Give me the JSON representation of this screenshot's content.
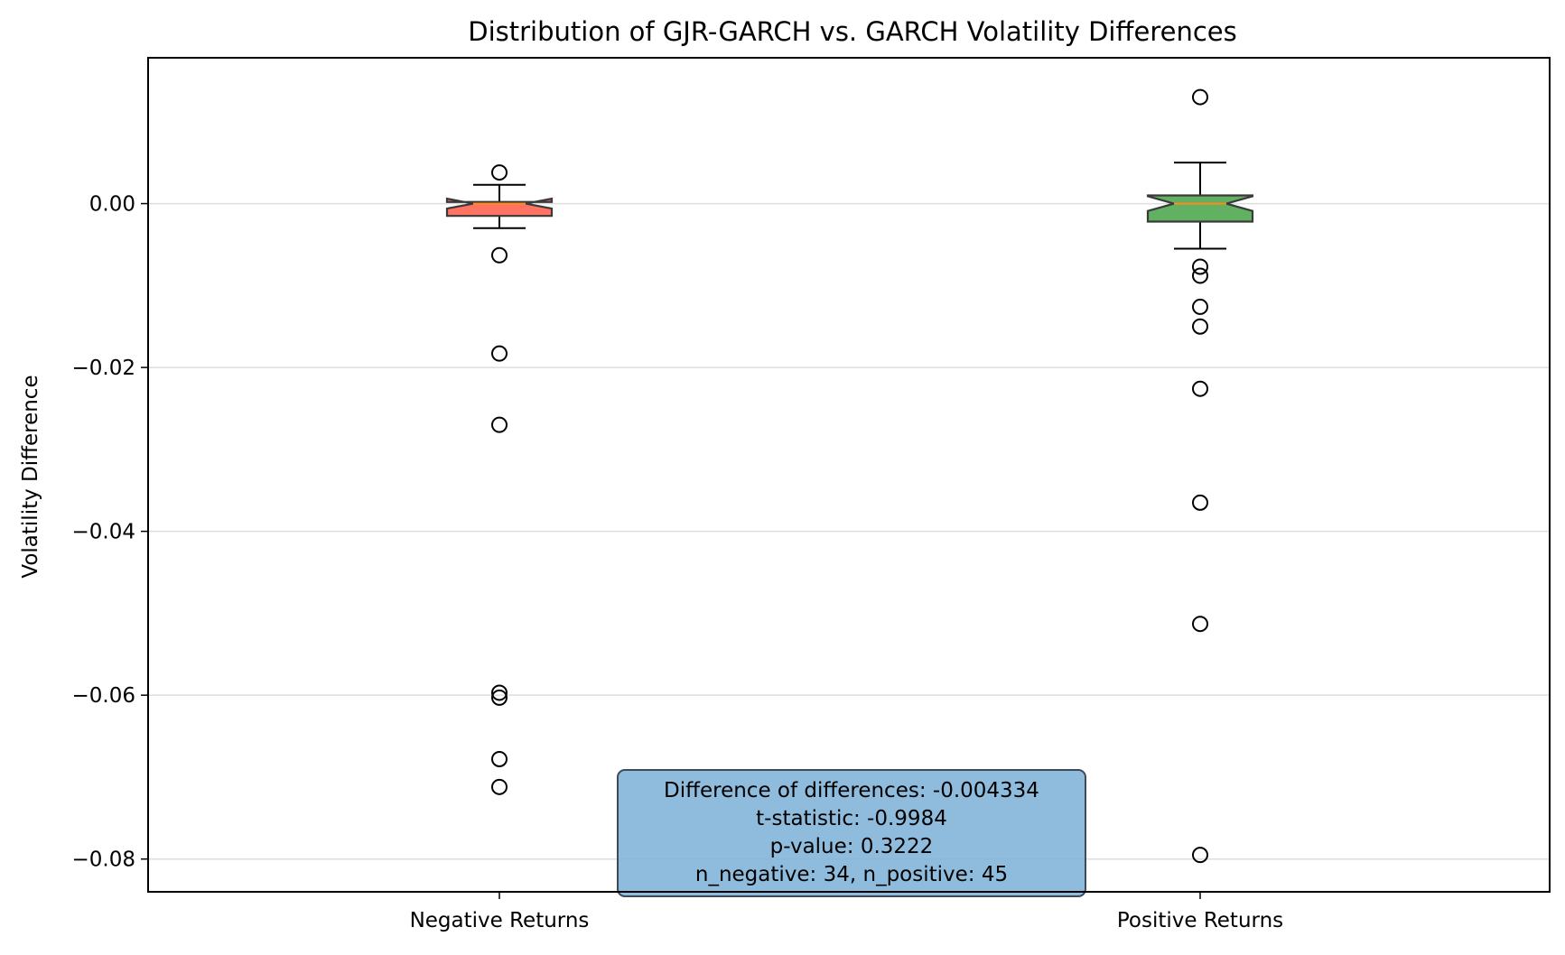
{
  "chart_data": {
    "type": "box",
    "title": "Distribution of GJR-GARCH vs. GARCH Volatility Differences",
    "xlabel": "",
    "ylabel": "Volatility Difference",
    "ylim": [
      -0.084,
      0.0178
    ],
    "yticks": [
      {
        "value": 0.0,
        "label": "0.00"
      },
      {
        "value": -0.02,
        "label": "−0.02"
      },
      {
        "value": -0.04,
        "label": "−0.04"
      },
      {
        "value": -0.06,
        "label": "−0.06"
      },
      {
        "value": -0.08,
        "label": "−0.08"
      }
    ],
    "grid": {
      "y": true,
      "x": false
    },
    "notched": true,
    "categories": [
      "Negative Returns",
      "Positive Returns"
    ],
    "boxes": [
      {
        "name": "Negative Returns",
        "color": "#ff6b5b",
        "whisker_low": -0.003,
        "q1": -0.0015,
        "median": 0.0,
        "q3": 0.0002,
        "whisker_high": 0.0023,
        "notch_low": -0.0006,
        "notch_high": 0.0006,
        "outliers": [
          0.0038,
          -0.0063,
          -0.0183,
          -0.027,
          -0.0597,
          -0.0603,
          -0.0678,
          -0.0712
        ]
      },
      {
        "name": "Positive Returns",
        "color": "#5aad5a",
        "whisker_low": -0.0055,
        "q1": -0.0022,
        "median": 0.0,
        "q3": 0.001,
        "whisker_high": 0.005,
        "notch_low": -0.0009,
        "notch_high": 0.0009,
        "outliers": [
          0.013,
          -0.0077,
          -0.0088,
          -0.0126,
          -0.015,
          -0.0226,
          -0.0365,
          -0.0513,
          -0.0795
        ]
      }
    ],
    "median_color": "#ff8c1a",
    "annotation": {
      "lines": [
        "Difference of differences: -0.004334",
        "t-statistic: -0.9984",
        "p-value: 0.3222",
        "n_negative: 34, n_positive: 45"
      ],
      "box_color": "#7fb3d8",
      "position": "bottom-center"
    }
  }
}
